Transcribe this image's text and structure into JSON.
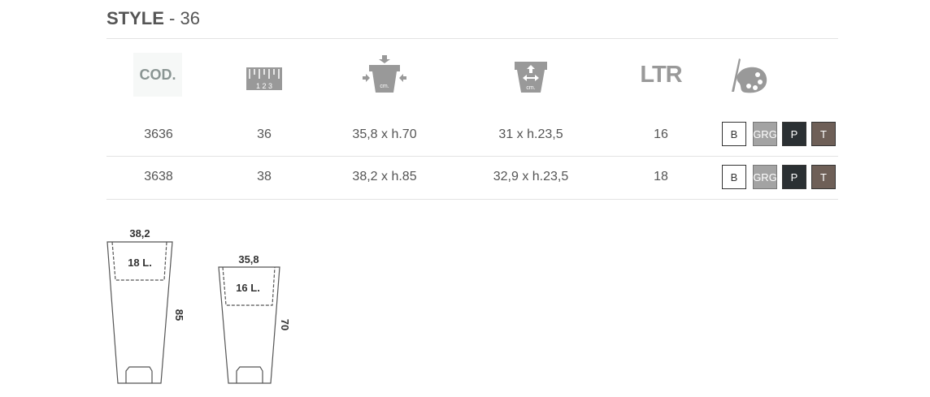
{
  "title": {
    "bold": "STYLE",
    "rest": " - 36"
  },
  "headers": {
    "cod": "COD.",
    "ltr": "LTR",
    "icons": [
      "ruler-icon",
      "outer-dimensions-icon",
      "inner-dimensions-icon",
      "palette-icon"
    ],
    "ruler_digits": "1 2 3",
    "cm": "cm."
  },
  "rows": [
    {
      "cod": "3636",
      "size": "36",
      "outer": "35,8 x h.70",
      "inner": "31 x h.23,5",
      "ltr": "16"
    },
    {
      "cod": "3638",
      "size": "38",
      "outer": "38,2 x h.85",
      "inner": "32,9 x h.23,5",
      "ltr": "18"
    }
  ],
  "colors": [
    {
      "label": "B",
      "bg": "#ffffff",
      "fg": "#333333"
    },
    {
      "label": "GRG",
      "bg": "#a3a3a3",
      "fg": "#ffffff"
    },
    {
      "label": "P",
      "bg": "#2b3033",
      "fg": "#ffffff"
    },
    {
      "label": "T",
      "bg": "#6e5f57",
      "fg": "#ffffff"
    }
  ],
  "drawings": [
    {
      "width": "38,2",
      "volume": "18 L.",
      "height": "85"
    },
    {
      "width": "35,8",
      "volume": "16 L.",
      "height": "70"
    }
  ]
}
